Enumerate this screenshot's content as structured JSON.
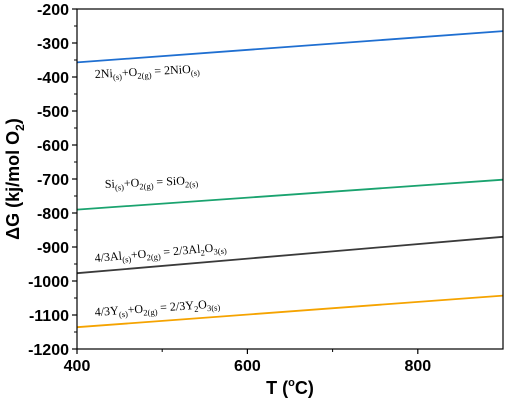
{
  "chart_data": {
    "type": "line",
    "xlabel": {
      "main": "T (",
      "sup": "o",
      "unit": "C)"
    },
    "ylabel": {
      "main": "ΔG (kj/mol O",
      "sub": "2",
      "end": ")"
    },
    "xlim": [
      400,
      900
    ],
    "ylim": [
      -1200,
      -200
    ],
    "xticks": [
      400,
      600,
      800
    ],
    "yticks": [
      -200,
      -300,
      -400,
      -500,
      -600,
      -700,
      -800,
      -900,
      -1000,
      -1100,
      -1200
    ],
    "grid": false,
    "legend": "none",
    "series": [
      {
        "color": "#1f6fd1",
        "points": [
          [
            400,
            -357
          ],
          [
            900,
            -265
          ]
        ],
        "label": [
          {
            "t": "2Ni"
          },
          {
            "t": "(s)",
            "sub": true
          },
          {
            "t": "+O"
          },
          {
            "t": "2(g)",
            "sub": true
          },
          {
            "t": " = 2NiO"
          },
          {
            "t": "(s)",
            "sub": true
          }
        ]
      },
      {
        "color": "#1aa36f",
        "points": [
          [
            400,
            -790
          ],
          [
            900,
            -702
          ]
        ],
        "label": [
          {
            "t": "Si"
          },
          {
            "t": "(s)",
            "sub": true
          },
          {
            "t": "+O"
          },
          {
            "t": "2(g)",
            "sub": true
          },
          {
            "t": " = SiO"
          },
          {
            "t": "2(s)",
            "sub": true
          }
        ]
      },
      {
        "color": "#3a3a3a",
        "points": [
          [
            400,
            -977
          ],
          [
            900,
            -870
          ]
        ],
        "label": [
          {
            "t": "4/3Al"
          },
          {
            "t": "(s)",
            "sub": true
          },
          {
            "t": "+O"
          },
          {
            "t": "2(g)",
            "sub": true
          },
          {
            "t": " = 2/3Al"
          },
          {
            "t": "2",
            "sub": true
          },
          {
            "t": "O"
          },
          {
            "t": "3(s)",
            "sub": true
          }
        ]
      },
      {
        "color": "#f5a300",
        "points": [
          [
            400,
            -1136
          ],
          [
            900,
            -1043
          ]
        ],
        "label": [
          {
            "t": "4/3Y"
          },
          {
            "t": "(s)",
            "sub": true
          },
          {
            "t": "+O"
          },
          {
            "t": "2(g)",
            "sub": true
          },
          {
            "t": " = 2/3Y"
          },
          {
            "t": "2",
            "sub": true
          },
          {
            "t": "O"
          },
          {
            "t": "3(s)",
            "sub": true
          }
        ]
      }
    ]
  }
}
